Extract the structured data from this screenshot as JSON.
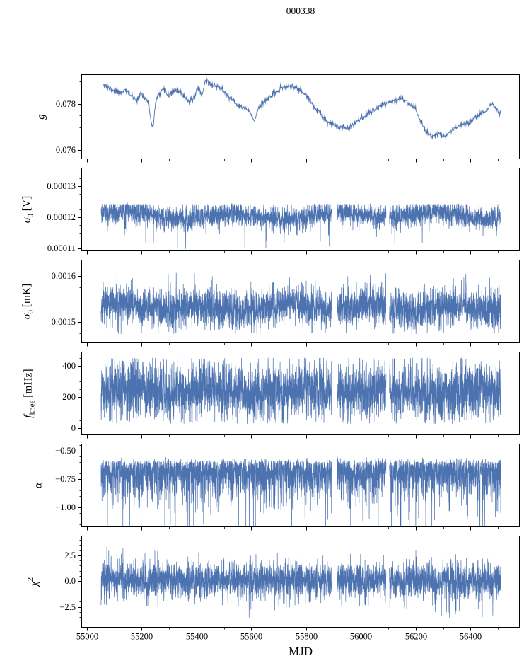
{
  "chart_data": {
    "type": "line",
    "title": "000338",
    "xlabel": "MJD",
    "line_color": "#4c72b0",
    "axis_color": "#000000",
    "x_range": [
      54980,
      56580
    ],
    "x_ticks": [
      {
        "v": 55000,
        "label": "55000"
      },
      {
        "v": 55200,
        "label": "55200"
      },
      {
        "v": 55400,
        "label": "55400"
      },
      {
        "v": 55600,
        "label": "55600"
      },
      {
        "v": 55800,
        "label": "55800"
      },
      {
        "v": 56000,
        "label": "56000"
      },
      {
        "v": 56200,
        "label": "56200"
      },
      {
        "v": 56400,
        "label": "56400"
      }
    ],
    "x_minor_step": 100,
    "data_gaps": [
      [
        55893,
        55913
      ],
      [
        56092,
        56104
      ]
    ],
    "panels": [
      {
        "name": "g",
        "ylabel": "g",
        "ylabel_segments": [
          {
            "t": "g",
            "style": "italic"
          }
        ],
        "ylim": [
          0.0756,
          0.0793
        ],
        "y_ticks": [
          {
            "v": 0.076,
            "label": "0.076"
          },
          {
            "v": 0.078,
            "label": "0.078"
          }
        ],
        "y_minor_step": 0.0005,
        "series": {
          "kind": "smooth",
          "respect_gaps": false,
          "step": 1.2,
          "jitter": 6e-05,
          "seed": 11,
          "control_points": [
            [
              55060,
              0.0789
            ],
            [
              55080,
              0.0787
            ],
            [
              55100,
              0.0786
            ],
            [
              55120,
              0.0785
            ],
            [
              55140,
              0.0786
            ],
            [
              55160,
              0.0784
            ],
            [
              55180,
              0.0782
            ],
            [
              55195,
              0.0784
            ],
            [
              55210,
              0.0783
            ],
            [
              55225,
              0.078
            ],
            [
              55240,
              0.077
            ],
            [
              55252,
              0.0781
            ],
            [
              55265,
              0.0784
            ],
            [
              55280,
              0.0786
            ],
            [
              55300,
              0.0784
            ],
            [
              55320,
              0.0786
            ],
            [
              55340,
              0.0785
            ],
            [
              55360,
              0.0783
            ],
            [
              55378,
              0.0781
            ],
            [
              55395,
              0.0784
            ],
            [
              55408,
              0.0787
            ],
            [
              55420,
              0.0784
            ],
            [
              55432,
              0.079
            ],
            [
              55448,
              0.0789
            ],
            [
              55468,
              0.0788
            ],
            [
              55490,
              0.0787
            ],
            [
              55512,
              0.0784
            ],
            [
              55535,
              0.0781
            ],
            [
              55558,
              0.0779
            ],
            [
              55580,
              0.0778
            ],
            [
              55598,
              0.0776
            ],
            [
              55610,
              0.0773
            ],
            [
              55625,
              0.0778
            ],
            [
              55645,
              0.0781
            ],
            [
              55665,
              0.0783
            ],
            [
              55690,
              0.0785
            ],
            [
              55715,
              0.0787
            ],
            [
              55740,
              0.0788
            ],
            [
              55765,
              0.0787
            ],
            [
              55790,
              0.0785
            ],
            [
              55812,
              0.0782
            ],
            [
              55835,
              0.0778
            ],
            [
              55858,
              0.0775
            ],
            [
              55880,
              0.0772
            ],
            [
              55905,
              0.0771
            ],
            [
              55930,
              0.077
            ],
            [
              55955,
              0.077
            ],
            [
              55980,
              0.0772
            ],
            [
              56005,
              0.0774
            ],
            [
              56030,
              0.0776
            ],
            [
              56055,
              0.0778
            ],
            [
              56080,
              0.078
            ],
            [
              56105,
              0.0781
            ],
            [
              56130,
              0.0782
            ],
            [
              56155,
              0.0782
            ],
            [
              56178,
              0.078
            ],
            [
              56200,
              0.0778
            ],
            [
              56220,
              0.0772
            ],
            [
              56240,
              0.0768
            ],
            [
              56262,
              0.0766
            ],
            [
              56285,
              0.0767
            ],
            [
              56305,
              0.0766
            ],
            [
              56325,
              0.0768
            ],
            [
              56348,
              0.077
            ],
            [
              56370,
              0.0771
            ],
            [
              56392,
              0.0772
            ],
            [
              56415,
              0.0774
            ],
            [
              56438,
              0.0776
            ],
            [
              56458,
              0.0777
            ],
            [
              56475,
              0.078
            ],
            [
              56492,
              0.0778
            ],
            [
              56510,
              0.0776
            ]
          ]
        }
      },
      {
        "name": "sigma0_V",
        "ylabel": "sigma0 [V]",
        "ylabel_segments": [
          {
            "t": "σ",
            "style": "italic"
          },
          {
            "t": "0",
            "style": "sub"
          },
          {
            "t": " [V]",
            "style": "normal"
          }
        ],
        "ylim": [
          0.000109,
          0.000136
        ],
        "y_ticks": [
          {
            "v": 0.00011,
            "label": "0.00011"
          },
          {
            "v": 0.00012,
            "label": "0.00012"
          },
          {
            "v": 0.00013,
            "label": "0.00013"
          }
        ],
        "y_minor_step": 2.5e-06,
        "series": {
          "kind": "noise",
          "x_start": 55052,
          "x_end": 56512,
          "n": 3800,
          "seed": 2,
          "base": 0.0001205,
          "spread": 1.9e-06,
          "mod_amp": 9e-07,
          "mod_period": 380,
          "tail_dn": 2.8e-06,
          "tail_dn_p": 0.02,
          "tail_up": 8e-07,
          "tail_up_p": 0.02,
          "clip_min": 0.0001097,
          "clip_max": 0.0001243
        }
      },
      {
        "name": "sigma0_mK",
        "ylabel": "sigma0 [mK]",
        "ylabel_segments": [
          {
            "t": "σ",
            "style": "italic"
          },
          {
            "t": "0",
            "style": "sub"
          },
          {
            "t": " [mK]",
            "style": "normal"
          }
        ],
        "ylim": [
          0.001454,
          0.001635
        ],
        "y_ticks": [
          {
            "v": 0.0015,
            "label": "0.0015"
          },
          {
            "v": 0.0016,
            "label": "0.0016"
          }
        ],
        "y_minor_step": 2.5e-05,
        "series": {
          "kind": "noise",
          "x_start": 55052,
          "x_end": 56512,
          "n": 3800,
          "seed": 3,
          "base": 0.001532,
          "spread": 2.1e-05,
          "mod_amp": 6e-06,
          "mod_period": 300,
          "tail_dn": 1.3e-05,
          "tail_dn_p": 0.05,
          "tail_up": 1.3e-05,
          "tail_up_p": 0.05,
          "clip_min": 0.001474,
          "clip_max": 0.001607
        }
      },
      {
        "name": "f_knee",
        "ylabel": "f_knee [mHz]",
        "ylabel_segments": [
          {
            "t": "f",
            "style": "italic"
          },
          {
            "t": "knee",
            "style": "sub"
          },
          {
            "t": " [mHz]",
            "style": "normal"
          }
        ],
        "ylim": [
          -45,
          491
        ],
        "y_ticks": [
          {
            "v": 0,
            "label": "0"
          },
          {
            "v": 200,
            "label": "200"
          },
          {
            "v": 400,
            "label": "400"
          }
        ],
        "y_minor_step": 50,
        "series": {
          "kind": "noise",
          "x_start": 55052,
          "x_end": 56512,
          "n": 3800,
          "seed": 4,
          "base": 238,
          "spread": 90,
          "mod_amp": 12,
          "mod_period": 320,
          "tail_dn": 45,
          "tail_dn_p": 0.05,
          "tail_up": 45,
          "tail_up_p": 0.05,
          "clip_min": 28,
          "clip_max": 452
        }
      },
      {
        "name": "alpha",
        "ylabel": "alpha",
        "ylabel_segments": [
          {
            "t": "α",
            "style": "italic"
          }
        ],
        "ylim": [
          -1.175,
          -0.4375
        ],
        "y_ticks": [
          {
            "v": -1.0,
            "label": "−1.00"
          },
          {
            "v": -0.75,
            "label": "−0.75"
          },
          {
            "v": -0.5,
            "label": "−0.50"
          }
        ],
        "y_minor_step": 0.05,
        "series": {
          "kind": "noise",
          "dist": "half_down",
          "x_start": 55052,
          "x_end": 56512,
          "n": 3800,
          "seed": 5,
          "base": -0.6,
          "spread": 0.14,
          "up_jitter": 0.02,
          "tail_dn": 0.16,
          "tail_dn_p": 0.12,
          "clip_min": -1.45,
          "clip_max": -0.525
        }
      },
      {
        "name": "chi2",
        "ylabel": "chi^2",
        "ylabel_segments": [
          {
            "t": "χ",
            "style": "italic"
          },
          {
            "t": "2",
            "style": "sup"
          }
        ],
        "ylim": [
          -4.5,
          4.4
        ],
        "y_ticks": [
          {
            "v": -2.5,
            "label": "−2.5"
          },
          {
            "v": 0.0,
            "label": "0.0"
          },
          {
            "v": 2.5,
            "label": "2.5"
          }
        ],
        "y_minor_step": 0.5,
        "series": {
          "kind": "noise",
          "x_start": 55052,
          "x_end": 56512,
          "n": 3800,
          "seed": 6,
          "base": 0.05,
          "spread": 0.85,
          "mod_amp": 0,
          "mod_period": 300,
          "tail_dn": 0.55,
          "tail_dn_p": 0.05,
          "tail_up": 0.55,
          "tail_up_p": 0.05,
          "clip_min": -3.6,
          "clip_max": 3.4
        }
      }
    ]
  }
}
